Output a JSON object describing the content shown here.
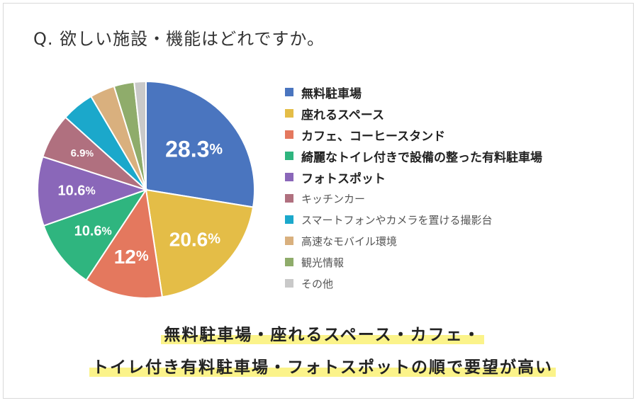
{
  "title": "Q. 欲しい施設・機能はどれですか。",
  "chart_data": {
    "type": "pie",
    "title": "Q. 欲しい施設・機能はどれですか。",
    "slices": [
      {
        "label": "無料駐車場",
        "value": 28.3,
        "color": "#4a75bf",
        "data_label": "28.3",
        "unit": "%",
        "emphasis": true
      },
      {
        "label": "座れるスペース",
        "value": 20.6,
        "color": "#e4bd47",
        "data_label": "20.6",
        "unit": "%",
        "emphasis": true
      },
      {
        "label": "カフェ、コーヒースタンド",
        "value": 12,
        "color": "#e4785e",
        "data_label": "12",
        "unit": "%",
        "emphasis": true
      },
      {
        "label": "綺麗なトイレ付きで設備の整った有料駐車場",
        "value": 10.6,
        "color": "#2fb57f",
        "data_label": "10.6",
        "unit": "%",
        "emphasis": true
      },
      {
        "label": "フォトスポット",
        "value": 10.6,
        "color": "#8a67b9",
        "data_label": "10.6",
        "unit": "%",
        "emphasis": true
      },
      {
        "label": "キッチンカー",
        "value": 6.9,
        "color": "#b0707f",
        "data_label": "6.9",
        "unit": "%",
        "emphasis": false
      },
      {
        "label": "スマートフォンやカメラを置ける撮影台",
        "value": 5,
        "color": "#1ba8cb",
        "data_label": "",
        "unit": "",
        "emphasis": false
      },
      {
        "label": "高速なモバイル環境",
        "value": 3.8,
        "color": "#d9b07e",
        "data_label": "",
        "unit": "",
        "emphasis": false
      },
      {
        "label": "観光情報",
        "value": 3.1,
        "color": "#8fac6b",
        "data_label": "",
        "unit": "",
        "emphasis": false
      },
      {
        "label": "その他",
        "value": 1.8,
        "color": "#c9c9c9",
        "data_label": "",
        "unit": "",
        "emphasis": false
      }
    ],
    "start": "12 o'clock",
    "direction": "clockwise",
    "legend_position": "right"
  },
  "summary": {
    "line1": "無料駐車場・座れるスペース・カフェ・",
    "line2": "トイレ付き有料駐車場・フォトスポットの順で要望が高い"
  }
}
